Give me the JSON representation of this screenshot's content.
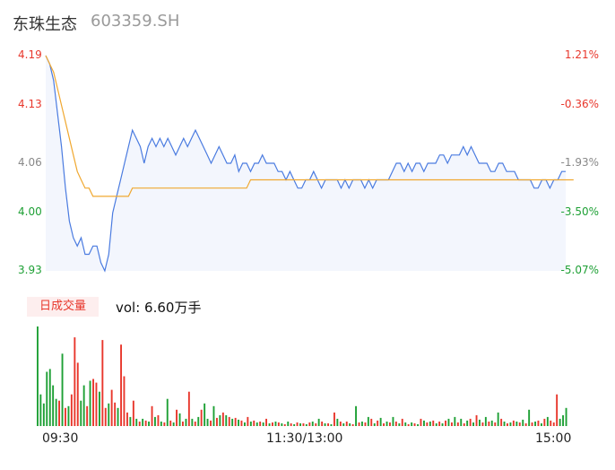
{
  "header": {
    "name": "东珠生态",
    "code": "603359.SH"
  },
  "colors": {
    "up": "#e8372c",
    "down": "#1ea035",
    "price_line": "#4a7be0",
    "avg_line": "#f0a830",
    "area_fill": "#f3f6fd",
    "neutral": "#888888"
  },
  "volume_panel": {
    "badge": "日成交量",
    "vol_text": "vol: 6.60万手"
  },
  "chart_data": [
    {
      "type": "line",
      "title": "",
      "x_tick_labels": [
        "09:30",
        "11:30/13:00",
        "15:00"
      ],
      "price_ticks": [
        {
          "label": "4.19",
          "value": 4.19,
          "side": "up"
        },
        {
          "label": "4.13",
          "value": 4.13,
          "side": "up"
        },
        {
          "label": "4.06",
          "value": 4.06,
          "side": "neutral"
        },
        {
          "label": "4.00",
          "value": 4.0,
          "side": "down"
        },
        {
          "label": "3.93",
          "value": 3.93,
          "side": "down"
        }
      ],
      "pct_ticks": [
        {
          "label": "1.21%",
          "value": 1.21,
          "side": "up"
        },
        {
          "label": "-0.36%",
          "value": -0.36,
          "side": "up"
        },
        {
          "label": "-1.93%",
          "value": -1.93,
          "side": "neutral"
        },
        {
          "label": "-3.50%",
          "value": -3.5,
          "side": "down"
        },
        {
          "label": "-5.07%",
          "value": -5.07,
          "side": "down"
        }
      ],
      "ylim": [
        3.93,
        4.19
      ],
      "series": [
        {
          "kind": "price",
          "values": [
            4.19,
            4.18,
            4.16,
            4.12,
            4.08,
            4.03,
            3.99,
            3.97,
            3.96,
            3.97,
            3.95,
            3.95,
            3.96,
            3.96,
            3.94,
            3.93,
            3.95,
            4.0,
            4.02,
            4.04,
            4.06,
            4.08,
            4.1,
            4.09,
            4.08,
            4.06,
            4.08,
            4.09,
            4.08,
            4.09,
            4.08,
            4.09,
            4.08,
            4.07,
            4.08,
            4.09,
            4.08,
            4.09,
            4.1,
            4.09,
            4.08,
            4.07,
            4.06,
            4.07,
            4.08,
            4.07,
            4.06,
            4.06,
            4.07,
            4.05,
            4.06,
            4.06,
            4.05,
            4.06,
            4.06,
            4.07,
            4.06,
            4.06,
            4.06,
            4.05,
            4.05,
            4.04,
            4.05,
            4.04,
            4.03,
            4.03,
            4.04,
            4.04,
            4.05,
            4.04,
            4.03,
            4.04,
            4.04,
            4.04,
            4.04,
            4.03,
            4.04,
            4.03,
            4.04,
            4.04,
            4.04,
            4.03,
            4.04,
            4.03,
            4.04,
            4.04,
            4.04,
            4.04,
            4.05,
            4.06,
            4.06,
            4.05,
            4.06,
            4.05,
            4.06,
            4.06,
            4.05,
            4.06,
            4.06,
            4.06,
            4.07,
            4.07,
            4.06,
            4.07,
            4.07,
            4.07,
            4.08,
            4.07,
            4.08,
            4.07,
            4.06,
            4.06,
            4.06,
            4.05,
            4.05,
            4.06,
            4.06,
            4.05,
            4.05,
            4.05,
            4.04,
            4.04,
            4.04,
            4.04,
            4.03,
            4.03,
            4.04,
            4.04,
            4.03,
            4.04,
            4.04,
            4.05,
            4.05
          ],
          "color": "#4a7be0"
        },
        {
          "kind": "average",
          "values": [
            4.19,
            4.18,
            4.17,
            4.15,
            4.13,
            4.11,
            4.09,
            4.07,
            4.05,
            4.04,
            4.03,
            4.03,
            4.02,
            4.02,
            4.02,
            4.02,
            4.02,
            4.02,
            4.02,
            4.02,
            4.02,
            4.02,
            4.03,
            4.03,
            4.03,
            4.03,
            4.03,
            4.03,
            4.03,
            4.03,
            4.03,
            4.03,
            4.03,
            4.03,
            4.03,
            4.03,
            4.03,
            4.03,
            4.03,
            4.03,
            4.03,
            4.03,
            4.03,
            4.03,
            4.03,
            4.03,
            4.03,
            4.03,
            4.03,
            4.03,
            4.03,
            4.03,
            4.04,
            4.04,
            4.04,
            4.04,
            4.04,
            4.04,
            4.04,
            4.04,
            4.04,
            4.04,
            4.04,
            4.04,
            4.04,
            4.04,
            4.04,
            4.04,
            4.04,
            4.04,
            4.04,
            4.04,
            4.04,
            4.04,
            4.04,
            4.04,
            4.04,
            4.04,
            4.04,
            4.04,
            4.04,
            4.04,
            4.04,
            4.04,
            4.04,
            4.04,
            4.04,
            4.04,
            4.04,
            4.04,
            4.04,
            4.04,
            4.04,
            4.04,
            4.04,
            4.04,
            4.04,
            4.04,
            4.04,
            4.04,
            4.04,
            4.04,
            4.04,
            4.04,
            4.04,
            4.04,
            4.04,
            4.04,
            4.04,
            4.04,
            4.04,
            4.04,
            4.04,
            4.04,
            4.04,
            4.04,
            4.04,
            4.04,
            4.04,
            4.04,
            4.04,
            4.04,
            4.04,
            4.04,
            4.04,
            4.04,
            4.04,
            4.04,
            4.04,
            4.04,
            4.04,
            4.04,
            4.04,
            4.04,
            4.04
          ],
          "color": "#f0a830"
        }
      ]
    },
    {
      "type": "bar",
      "title": "",
      "ylim": [
        0,
        110
      ],
      "values": [
        110,
        35,
        25,
        60,
        63,
        45,
        30,
        28,
        80,
        20,
        22,
        35,
        98,
        70,
        28,
        45,
        22,
        50,
        52,
        48,
        38,
        95,
        20,
        25,
        40,
        26,
        20,
        90,
        55,
        15,
        10,
        28,
        8,
        5,
        8,
        6,
        5,
        22,
        10,
        12,
        5,
        4,
        30,
        6,
        4,
        18,
        14,
        5,
        8,
        38,
        8,
        5,
        10,
        18,
        25,
        8,
        6,
        22,
        9,
        12,
        15,
        12,
        10,
        8,
        9,
        7,
        6,
        4,
        10,
        5,
        6,
        4,
        5,
        4,
        8,
        3,
        4,
        5,
        4,
        3,
        2,
        5,
        3,
        2,
        4,
        3,
        3,
        2,
        4,
        5,
        3,
        8,
        5,
        3,
        3,
        2,
        15,
        8,
        5,
        3,
        5,
        3,
        2,
        22,
        4,
        5,
        4,
        10,
        8,
        3,
        6,
        9,
        3,
        5,
        4,
        10,
        5,
        3,
        8,
        4,
        2,
        4,
        3,
        2,
        8,
        6,
        4,
        5,
        6,
        3,
        5,
        3,
        6,
        8,
        4,
        10,
        4,
        8,
        3,
        6,
        8,
        4,
        12,
        7,
        4,
        10,
        5,
        6,
        4,
        15,
        8,
        5,
        3,
        4,
        6,
        5,
        4,
        7,
        3,
        18,
        4,
        5,
        6,
        3,
        8,
        10,
        6,
        4,
        35,
        8,
        12,
        20
      ],
      "colors": [
        "down",
        "down",
        "down",
        "down",
        "down",
        "down",
        "down",
        "up",
        "down",
        "up",
        "down",
        "up",
        "up",
        "up",
        "down",
        "down",
        "up",
        "down",
        "up",
        "up",
        "down",
        "up",
        "up",
        "down",
        "up",
        "up",
        "down",
        "up",
        "up",
        "up",
        "down",
        "up",
        "down",
        "up",
        "down",
        "up",
        "down",
        "up",
        "down",
        "up",
        "down",
        "up",
        "down",
        "up",
        "down",
        "up",
        "down",
        "up",
        "down",
        "up",
        "down",
        "up",
        "down",
        "up",
        "down",
        "down",
        "up",
        "down",
        "up",
        "down",
        "up",
        "down",
        "up",
        "down",
        "up",
        "down",
        "up",
        "down",
        "up",
        "down",
        "up",
        "down",
        "up",
        "down",
        "up",
        "down",
        "up",
        "down",
        "up",
        "down",
        "up",
        "down",
        "up",
        "down",
        "up",
        "down",
        "up",
        "down",
        "up",
        "down",
        "up",
        "down",
        "up",
        "down",
        "up",
        "down",
        "up",
        "down",
        "up",
        "down",
        "up",
        "down",
        "up",
        "down",
        "up",
        "down",
        "up",
        "down",
        "up",
        "down",
        "up",
        "down",
        "up",
        "down",
        "up",
        "down",
        "up",
        "down",
        "up",
        "down",
        "up",
        "down",
        "up",
        "down",
        "up",
        "down",
        "up",
        "down",
        "up",
        "down",
        "up",
        "down",
        "up",
        "down",
        "up",
        "down",
        "up",
        "down",
        "up",
        "down",
        "up",
        "down",
        "up",
        "down",
        "up",
        "down",
        "up",
        "down",
        "up",
        "down",
        "up",
        "down",
        "up",
        "down",
        "up",
        "down",
        "up",
        "down",
        "up",
        "down",
        "up",
        "down",
        "up",
        "down",
        "up",
        "down",
        "up",
        "up",
        "up"
      ]
    }
  ]
}
